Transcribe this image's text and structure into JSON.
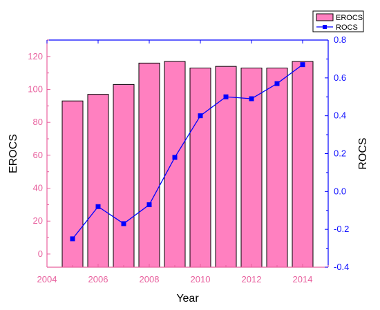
{
  "chart_data": {
    "type": "bar+line",
    "xlabel": "Year",
    "x_ticks": [
      "2004",
      "2006",
      "2008",
      "2010",
      "2012",
      "2014"
    ],
    "xlim": [
      2004,
      2015
    ],
    "bars": {
      "name": "EROCS",
      "axis": "left",
      "x": [
        2005,
        2006,
        2007,
        2008,
        2009,
        2010,
        2011,
        2012,
        2013,
        2014
      ],
      "values": [
        93,
        97,
        103,
        116,
        117,
        113,
        114,
        113,
        113,
        117
      ],
      "color": "#FF80C0"
    },
    "line": {
      "name": "ROCS",
      "axis": "right",
      "x": [
        2005,
        2006,
        2007,
        2008,
        2009,
        2010,
        2011,
        2012,
        2013,
        2014
      ],
      "values": [
        -0.25,
        -0.08,
        -0.17,
        -0.07,
        0.18,
        0.4,
        0.5,
        0.49,
        0.57,
        0.67
      ],
      "color": "#0000FF"
    },
    "y_left": {
      "label": "EROCS",
      "ylim": [
        -8,
        130
      ],
      "ticks": [
        "0",
        "20",
        "40",
        "60",
        "80",
        "100",
        "120"
      ],
      "color": "#E8609E"
    },
    "y_right": {
      "label": "ROCS",
      "ylim": [
        -0.4,
        0.8
      ],
      "ticks": [
        "-0.4",
        "-0.2",
        "0.0",
        "0.2",
        "0.4",
        "0.6",
        "0.8"
      ],
      "color": "#0000FF"
    },
    "legend": {
      "position": "top-right",
      "entries": [
        "EROCS",
        "ROCS"
      ]
    },
    "grid": false
  }
}
